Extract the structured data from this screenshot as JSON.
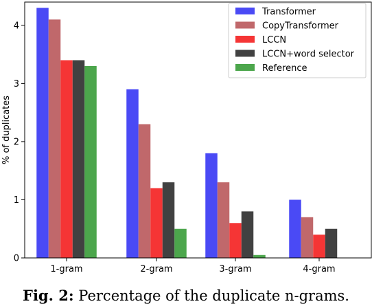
{
  "chart_data": {
    "type": "bar",
    "categories": [
      "1-gram",
      "2-gram",
      "3-gram",
      "4-gram"
    ],
    "series": [
      {
        "name": "Transformer",
        "color": "#4a4af5",
        "values": [
          4.3,
          2.9,
          1.8,
          1.0
        ]
      },
      {
        "name": "CopyTransformer",
        "color": "#c0686b",
        "values": [
          4.1,
          2.3,
          1.3,
          0.7
        ]
      },
      {
        "name": "LCCN",
        "color": "#f53535",
        "values": [
          3.4,
          1.2,
          0.6,
          0.4
        ]
      },
      {
        "name": "LCCN+word selector",
        "color": "#414141",
        "values": [
          3.4,
          1.3,
          0.8,
          0.5
        ]
      },
      {
        "name": "Reference",
        "color": "#4ca64c",
        "values": [
          3.3,
          0.5,
          0.05,
          0.0
        ]
      }
    ],
    "ylabel": "% of duplicates",
    "xlabel": "",
    "ylim": [
      0,
      4.4
    ],
    "yticks": [
      0,
      1,
      2,
      3,
      4
    ],
    "legend": "top-right",
    "grid": false
  },
  "caption": {
    "label": "Fig. 2:",
    "text": "Percentage of the duplicate n-grams."
  }
}
